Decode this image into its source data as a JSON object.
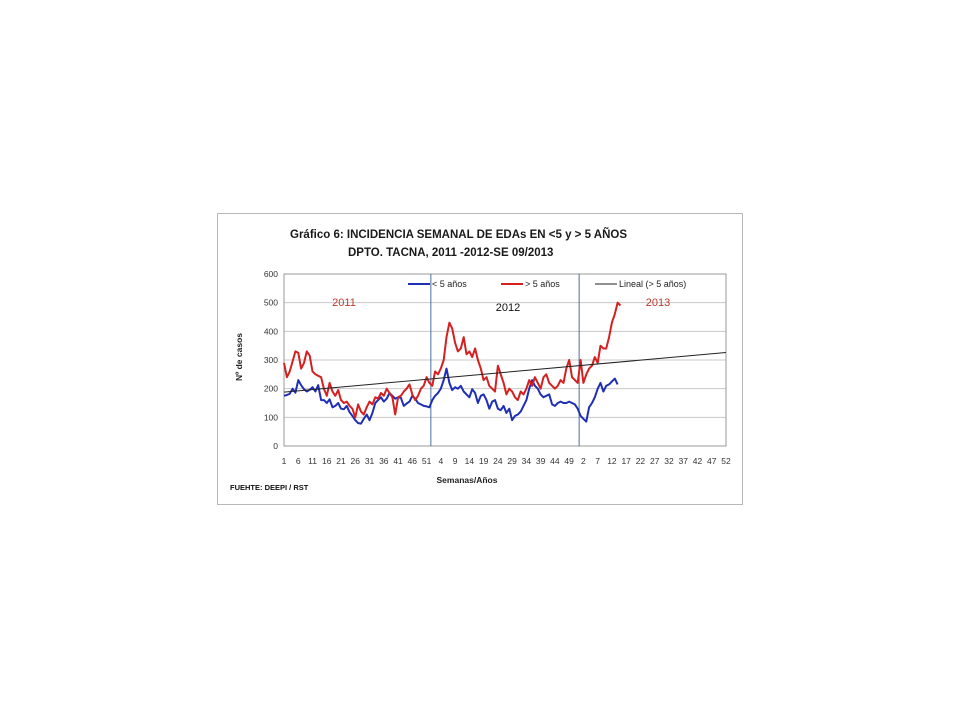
{
  "chart_data": {
    "type": "line",
    "title_line1": "Gráfico 6: INCIDENCIA SEMANAL DE EDAs EN <5 y > 5 AÑOS",
    "title_line2": "DPTO. TACNA, 2011 -2012-SE 09/2013",
    "ylabel": "Nº de casos",
    "xlabel": "Semanas/Años",
    "source": "FUEHTE: DEEPI / RST",
    "ylim": [
      0,
      600
    ],
    "y_ticks": [
      0,
      100,
      200,
      300,
      400,
      500,
      600
    ],
    "x_tick_labels": [
      "1",
      "6",
      "11",
      "16",
      "21",
      "26",
      "31",
      "36",
      "41",
      "46",
      "51",
      "4",
      "9",
      "14",
      "19",
      "24",
      "29",
      "34",
      "39",
      "44",
      "49",
      "2",
      "7",
      "12",
      "17",
      "22",
      "27",
      "32",
      "37",
      "42",
      "47",
      "52"
    ],
    "year_separators_after_week": [
      52,
      104
    ],
    "year_labels": [
      {
        "text": "2011",
        "color": "#c0392b"
      },
      {
        "text": "2012",
        "color": "#111111"
      },
      {
        "text": "2013",
        "color": "#c0392b"
      }
    ],
    "grid": true,
    "legend_position": "top",
    "series": [
      {
        "name": "< 5 años",
        "color": "#1f2fb5",
        "values": [
          175,
          178,
          182,
          200,
          186,
          230,
          212,
          198,
          190,
          196,
          205,
          190,
          212,
          160,
          160,
          150,
          163,
          135,
          140,
          150,
          130,
          128,
          140,
          118,
          105,
          90,
          80,
          78,
          95,
          110,
          90,
          115,
          150,
          160,
          170,
          155,
          165,
          185,
          175,
          165,
          170,
          168,
          140,
          148,
          155,
          175,
          165,
          150,
          145,
          140,
          138,
          135,
          160,
          175,
          185,
          200,
          230,
          270,
          220,
          195,
          205,
          200,
          210,
          190,
          180,
          170,
          198,
          185,
          150,
          175,
          180,
          160,
          130,
          155,
          160,
          130,
          125,
          140,
          115,
          130,
          90,
          105,
          110,
          120,
          140,
          160,
          200,
          230,
          210,
          200,
          180,
          170,
          175,
          180,
          145,
          140,
          150,
          155,
          150,
          150,
          155,
          150,
          145,
          130,
          105,
          95,
          85,
          135,
          150,
          170,
          200,
          220,
          190,
          210,
          215,
          225,
          235,
          215
        ]
      },
      {
        "name": "> 5 años",
        "color": "#d42020",
        "values": [
          290,
          240,
          260,
          295,
          330,
          325,
          270,
          290,
          330,
          315,
          260,
          250,
          245,
          240,
          200,
          175,
          220,
          190,
          175,
          195,
          160,
          150,
          155,
          140,
          130,
          100,
          145,
          120,
          110,
          135,
          155,
          145,
          170,
          165,
          185,
          175,
          200,
          185,
          170,
          110,
          170,
          175,
          190,
          200,
          215,
          180,
          160,
          175,
          200,
          210,
          240,
          220,
          210,
          260,
          250,
          270,
          300,
          380,
          430,
          410,
          360,
          330,
          340,
          380,
          320,
          330,
          310,
          340,
          300,
          270,
          230,
          240,
          210,
          200,
          190,
          280,
          250,
          220,
          180,
          200,
          190,
          170,
          160,
          190,
          180,
          200,
          230,
          210,
          240,
          220,
          200,
          240,
          250,
          220,
          210,
          200,
          210,
          230,
          220,
          270,
          300,
          240,
          230,
          220,
          300,
          220,
          250,
          270,
          280,
          310,
          290,
          350,
          340,
          340,
          380,
          430,
          460,
          500,
          490
        ]
      },
      {
        "name": "Lineal (> 5 años)",
        "color": "#222222",
        "values": [
          188,
          326
        ]
      }
    ]
  }
}
